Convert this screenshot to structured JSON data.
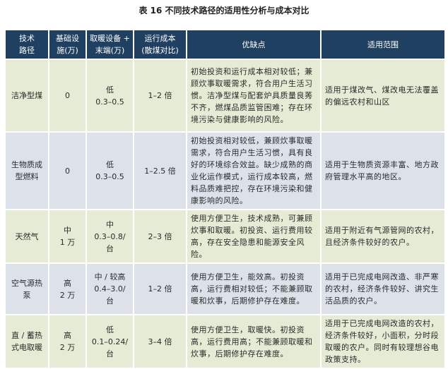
{
  "title": "表 16  不同技术路径的适用性分析与成本对比",
  "headers": [
    "技术\n路径",
    "基础设\n施(万)",
    "取暖设备 +\n末端(万)",
    "运行成本\n(散煤对比)",
    "优缺点",
    "适用范围"
  ],
  "rows": [
    {
      "tech": "洁净型煤",
      "infra": "0",
      "device": "低\n0.3–0.5",
      "cost": "1–2 倍",
      "pros_cons": "初始投资和运行成本相对较低；兼顾炊事取暖需求，符合用户生活习惯。洁净型煤与配套炉具质量良莠不齐，燃煤品质监管困难；存在环境污染与健康影响的风险。",
      "scope": "适用于煤改气、煤改电无法覆盖的偏远农村和山区"
    },
    {
      "tech": "生物质成\n型燃料",
      "infra": "0",
      "device": "低\n0.3–0.5",
      "cost": "1–2.5 倍",
      "pros_cons": "初始投资相对较低，兼顾炊事取暖需求，符合用户生活习惯，具有良好的环境综合效益。缺少成熟的商业化运作模式，运行成本较高，燃料品质难把控，存在环境污染和健康影响的风险。",
      "scope": "适用于生物质资源丰富、地方政府管理水平高的地区。"
    },
    {
      "tech": "天然气",
      "infra": "中\n1 万",
      "device": "中\n0.3–0.8/\n台",
      "cost": "2–3 倍",
      "pros_cons": "使用方便卫生，技术成熟，可兼顾炊事和取暖。初投资、运行费用较高，存在安全隐患和能源安全风险。",
      "scope": "适用于附近有气源管网的农村，且经济条件较好的农户。"
    },
    {
      "tech": "空气源热\n泵",
      "infra": "高\n2 万",
      "device": "中 / 较高\n0.4–3.0/\n台",
      "cost": "1–2 倍",
      "pros_cons": "使用方便卫生，能效高。初投资高，运行费相对较低；不能兼顾取暖和炊事，后期修护存在难度。",
      "scope": "适用于已完成电网改造、非严寒的农村，经济条件较好、讲究生活品质的农户。"
    },
    {
      "tech": "直 / 蓄热\n式电取暖",
      "infra": "高\n2 万",
      "device": "低\n0.1–0.24/\n台",
      "cost": "3–4 倍",
      "pros_cons": "使用方便卫生，取暖快。初投资高，运行费用高；不能兼顾取暖和炊事，后期修护存在难度。",
      "scope": "适用于已完成电网改造的农村，经济条件较好，小面积，分时段取暖的农户。同时有较理想谷电政策支持。"
    }
  ]
}
